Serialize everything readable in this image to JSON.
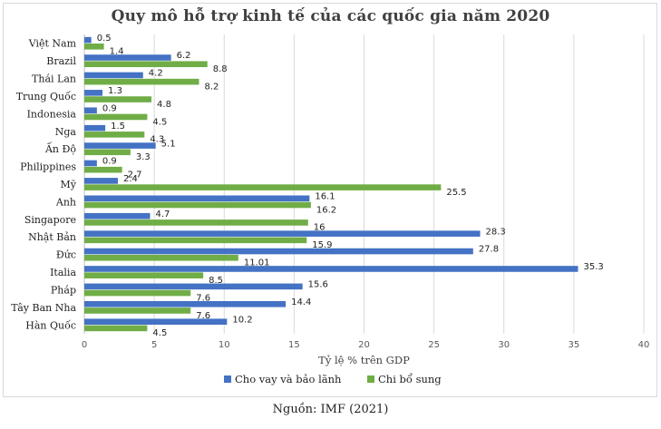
{
  "source": "Nguồn: IMF (2021)",
  "chart_data": {
    "type": "bar",
    "orientation": "horizontal",
    "title": "Quy mô hỗ trợ kinh tế của các quốc gia năm 2020",
    "xlabel": "Tỷ lệ % trên GDP",
    "ylabel": "",
    "xlim": [
      0,
      40
    ],
    "xticks": [
      0,
      5,
      10,
      15,
      20,
      25,
      30,
      35,
      40
    ],
    "grid": true,
    "legend_position": "bottom",
    "categories": [
      "Việt Nam",
      "Brazil",
      "Thái Lan",
      "Trung Quốc",
      "Indonesia",
      "Nga",
      "Ấn Độ",
      "Philippines",
      "Mỹ",
      "Anh",
      "Singapore",
      "Nhật Bản",
      "Đức",
      "Italia",
      "Pháp",
      "Tây Ban Nha",
      "Hàn Quốc"
    ],
    "series": [
      {
        "name": "Cho vay và bảo lãnh",
        "color": "#4472c4",
        "values": [
          0.5,
          6.2,
          4.2,
          1.3,
          0.9,
          1.5,
          5.1,
          0.9,
          2.4,
          16.1,
          4.7,
          28.3,
          27.8,
          35.3,
          15.6,
          14.4,
          10.2
        ],
        "labels": [
          "0.5",
          "6.2",
          "4.2",
          "1.3",
          "0.9",
          "1.5",
          "5.1",
          "0.9",
          "2.4",
          "16.1",
          "4.7",
          "28.3",
          "27.8",
          "35.3",
          "15.6",
          "14.4",
          "10.2"
        ]
      },
      {
        "name": "Chi bổ sung",
        "color": "#70ad47",
        "values": [
          1.4,
          8.8,
          8.2,
          4.8,
          4.5,
          4.3,
          3.3,
          2.7,
          25.5,
          16.2,
          16,
          15.9,
          11.01,
          8.5,
          7.6,
          7.6,
          4.5
        ],
        "labels": [
          "1.4",
          "8.8",
          "8.2",
          "4.8",
          "4.5",
          "4.3",
          "3.3",
          "2.7",
          "25.5",
          "16.2",
          "16",
          "15.9",
          "11.01",
          "8.5",
          "7.6",
          "7.6",
          "4.5"
        ]
      }
    ]
  }
}
